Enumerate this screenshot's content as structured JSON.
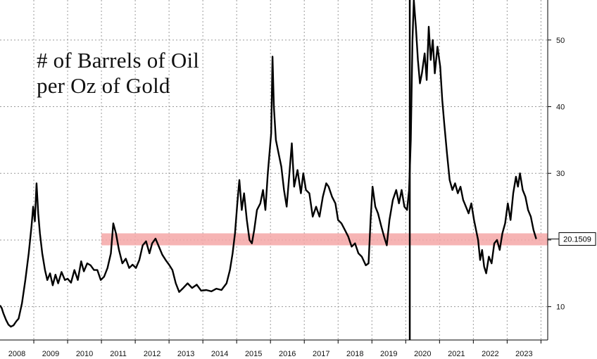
{
  "chart_data": {
    "type": "line",
    "title_lines": [
      "# of Barrels of Oil",
      "per Oz of Gold"
    ],
    "xlabel": "",
    "ylabel": "",
    "x_ticks": [
      "2008",
      "2009",
      "2010",
      "2011",
      "2012",
      "2013",
      "2014",
      "2015",
      "2016",
      "2017",
      "2018",
      "2019",
      "2020",
      "2021",
      "2022",
      "2023"
    ],
    "y_ticks": [
      10,
      20,
      30,
      40,
      50
    ],
    "y_tick_labels": [
      "10",
      "",
      "30",
      "40",
      "50"
    ],
    "ylim": [
      5,
      56
    ],
    "xlim": [
      2008.0,
      2024.2
    ],
    "grid": true,
    "last_value_label": "20.1509",
    "highlight_band": {
      "x_from": 2011.0,
      "x_to": 2024.2,
      "y_from": 19.2,
      "y_to": 21.0,
      "color": "#f4a7a7"
    },
    "series": [
      {
        "color": "#000000",
        "points": [
          [
            2008.0,
            10.2
          ],
          [
            2008.05,
            9.8
          ],
          [
            2008.1,
            9.0
          ],
          [
            2008.18,
            8.0
          ],
          [
            2008.25,
            7.3
          ],
          [
            2008.32,
            7.0
          ],
          [
            2008.4,
            7.2
          ],
          [
            2008.48,
            7.8
          ],
          [
            2008.55,
            8.2
          ],
          [
            2008.65,
            10.5
          ],
          [
            2008.75,
            14.0
          ],
          [
            2008.85,
            18.0
          ],
          [
            2008.93,
            22.0
          ],
          [
            2008.98,
            25.0
          ],
          [
            2009.03,
            22.8
          ],
          [
            2009.08,
            28.5
          ],
          [
            2009.13,
            24.0
          ],
          [
            2009.18,
            21.0
          ],
          [
            2009.25,
            18.0
          ],
          [
            2009.33,
            15.5
          ],
          [
            2009.4,
            14.0
          ],
          [
            2009.48,
            15.0
          ],
          [
            2009.56,
            13.2
          ],
          [
            2009.64,
            14.8
          ],
          [
            2009.72,
            13.5
          ],
          [
            2009.82,
            15.2
          ],
          [
            2009.92,
            14.0
          ],
          [
            2010.0,
            14.2
          ],
          [
            2010.1,
            13.6
          ],
          [
            2010.2,
            15.5
          ],
          [
            2010.3,
            14.0
          ],
          [
            2010.4,
            16.8
          ],
          [
            2010.48,
            15.3
          ],
          [
            2010.58,
            16.5
          ],
          [
            2010.68,
            16.2
          ],
          [
            2010.78,
            15.5
          ],
          [
            2010.88,
            15.5
          ],
          [
            2010.98,
            14.0
          ],
          [
            2011.08,
            14.5
          ],
          [
            2011.18,
            15.8
          ],
          [
            2011.28,
            18.0
          ],
          [
            2011.35,
            22.5
          ],
          [
            2011.43,
            21.0
          ],
          [
            2011.52,
            18.5
          ],
          [
            2011.62,
            16.5
          ],
          [
            2011.72,
            17.2
          ],
          [
            2011.82,
            15.8
          ],
          [
            2011.92,
            16.3
          ],
          [
            2012.02,
            15.8
          ],
          [
            2012.12,
            17.0
          ],
          [
            2012.22,
            19.2
          ],
          [
            2012.32,
            19.8
          ],
          [
            2012.42,
            18.0
          ],
          [
            2012.5,
            19.5
          ],
          [
            2012.6,
            20.2
          ],
          [
            2012.7,
            19.0
          ],
          [
            2012.8,
            17.8
          ],
          [
            2012.9,
            17.0
          ],
          [
            2013.0,
            16.3
          ],
          [
            2013.1,
            15.5
          ],
          [
            2013.2,
            13.5
          ],
          [
            2013.3,
            12.2
          ],
          [
            2013.42,
            12.8
          ],
          [
            2013.55,
            13.5
          ],
          [
            2013.68,
            12.8
          ],
          [
            2013.82,
            13.3
          ],
          [
            2013.95,
            12.4
          ],
          [
            2014.1,
            12.5
          ],
          [
            2014.25,
            12.3
          ],
          [
            2014.4,
            12.7
          ],
          [
            2014.55,
            12.5
          ],
          [
            2014.7,
            13.5
          ],
          [
            2014.8,
            15.5
          ],
          [
            2014.88,
            18.0
          ],
          [
            2014.95,
            21.0
          ],
          [
            2015.02,
            25.5
          ],
          [
            2015.08,
            29.0
          ],
          [
            2015.15,
            24.5
          ],
          [
            2015.22,
            27.0
          ],
          [
            2015.3,
            23.0
          ],
          [
            2015.38,
            20.0
          ],
          [
            2015.45,
            19.5
          ],
          [
            2015.52,
            21.5
          ],
          [
            2015.6,
            24.5
          ],
          [
            2015.7,
            25.5
          ],
          [
            2015.78,
            27.5
          ],
          [
            2015.85,
            24.5
          ],
          [
            2015.92,
            30.0
          ],
          [
            2016.02,
            36.0
          ],
          [
            2016.06,
            47.5
          ],
          [
            2016.1,
            40.0
          ],
          [
            2016.16,
            35.0
          ],
          [
            2016.24,
            33.0
          ],
          [
            2016.32,
            31.0
          ],
          [
            2016.4,
            27.5
          ],
          [
            2016.48,
            25.0
          ],
          [
            2016.56,
            30.0
          ],
          [
            2016.63,
            34.5
          ],
          [
            2016.7,
            28.0
          ],
          [
            2016.8,
            30.5
          ],
          [
            2016.9,
            27.0
          ],
          [
            2016.97,
            30.0
          ],
          [
            2017.05,
            27.5
          ],
          [
            2017.15,
            27.0
          ],
          [
            2017.25,
            23.5
          ],
          [
            2017.35,
            25.0
          ],
          [
            2017.45,
            23.5
          ],
          [
            2017.55,
            26.5
          ],
          [
            2017.65,
            28.5
          ],
          [
            2017.72,
            28.0
          ],
          [
            2017.82,
            26.5
          ],
          [
            2017.92,
            25.5
          ],
          [
            2018.0,
            23.0
          ],
          [
            2018.1,
            22.5
          ],
          [
            2018.2,
            21.5
          ],
          [
            2018.3,
            20.5
          ],
          [
            2018.4,
            19.0
          ],
          [
            2018.5,
            19.5
          ],
          [
            2018.6,
            18.0
          ],
          [
            2018.7,
            17.5
          ],
          [
            2018.82,
            16.2
          ],
          [
            2018.9,
            16.5
          ],
          [
            2018.96,
            23.0
          ],
          [
            2019.02,
            28.0
          ],
          [
            2019.1,
            25.0
          ],
          [
            2019.18,
            24.0
          ],
          [
            2019.28,
            22.0
          ],
          [
            2019.36,
            20.5
          ],
          [
            2019.44,
            19.2
          ],
          [
            2019.52,
            23.0
          ],
          [
            2019.62,
            26.0
          ],
          [
            2019.72,
            27.5
          ],
          [
            2019.8,
            25.5
          ],
          [
            2019.88,
            27.5
          ],
          [
            2019.96,
            25.0
          ],
          [
            2020.04,
            24.5
          ],
          [
            2020.1,
            27.5
          ],
          [
            2020.15,
            35.0
          ],
          [
            2020.2,
            50.0
          ],
          [
            2020.24,
            56.0
          ],
          [
            2020.3,
            52.0
          ],
          [
            2020.36,
            47.0
          ],
          [
            2020.42,
            43.5
          ],
          [
            2020.48,
            45.0
          ],
          [
            2020.56,
            48.0
          ],
          [
            2020.62,
            44.0
          ],
          [
            2020.68,
            52.0
          ],
          [
            2020.74,
            47.0
          ],
          [
            2020.8,
            50.0
          ],
          [
            2020.86,
            45.0
          ],
          [
            2020.94,
            49.0
          ],
          [
            2021.02,
            46.0
          ],
          [
            2021.08,
            41.0
          ],
          [
            2021.14,
            37.5
          ],
          [
            2021.22,
            33.0
          ],
          [
            2021.3,
            29.0
          ],
          [
            2021.38,
            27.5
          ],
          [
            2021.46,
            28.5
          ],
          [
            2021.54,
            27.0
          ],
          [
            2021.62,
            28.0
          ],
          [
            2021.7,
            26.0
          ],
          [
            2021.78,
            25.0
          ],
          [
            2021.86,
            24.0
          ],
          [
            2021.94,
            25.5
          ],
          [
            2022.02,
            23.0
          ],
          [
            2022.08,
            21.5
          ],
          [
            2022.14,
            20.0
          ],
          [
            2022.2,
            17.0
          ],
          [
            2022.26,
            18.5
          ],
          [
            2022.32,
            16.0
          ],
          [
            2022.38,
            15.0
          ],
          [
            2022.46,
            17.5
          ],
          [
            2022.54,
            16.5
          ],
          [
            2022.62,
            19.5
          ],
          [
            2022.7,
            20.0
          ],
          [
            2022.78,
            18.5
          ],
          [
            2022.86,
            21.0
          ],
          [
            2022.94,
            22.5
          ],
          [
            2023.02,
            25.5
          ],
          [
            2023.1,
            23.0
          ],
          [
            2023.18,
            27.0
          ],
          [
            2023.26,
            29.5
          ],
          [
            2023.32,
            28.0
          ],
          [
            2023.38,
            30.0
          ],
          [
            2023.46,
            27.5
          ],
          [
            2023.54,
            26.5
          ],
          [
            2023.62,
            24.5
          ],
          [
            2023.7,
            23.5
          ],
          [
            2023.78,
            21.5
          ],
          [
            2023.86,
            20.15
          ]
        ]
      }
    ],
    "event_line": {
      "x": 2020.12
    }
  }
}
